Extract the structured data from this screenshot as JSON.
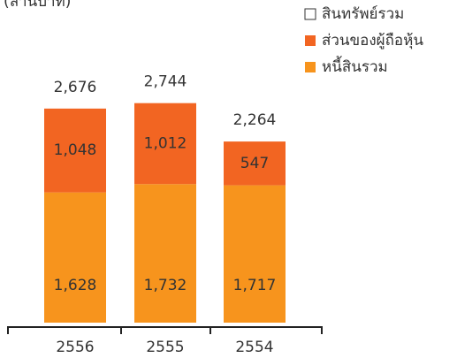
{
  "chart_data": {
    "type": "bar",
    "stacked": true,
    "y_label": "(ล้านบาท)",
    "categories": [
      "2556",
      "2555",
      "2554"
    ],
    "series": [
      {
        "name": "สินทรัพย์รวม",
        "color": "#ffffff",
        "values": [
          2676,
          2744,
          2264
        ],
        "value_labels": [
          "2,676",
          "2,744",
          "2,264"
        ]
      },
      {
        "name": "ส่วนของผู้ถือหุ้น",
        "color": "#f26522",
        "values": [
          1048,
          1012,
          547
        ],
        "value_labels": [
          "1,048",
          "1,012",
          "547"
        ]
      },
      {
        "name": "หนี้สินรวม",
        "color": "#f7941d",
        "values": [
          1628,
          1732,
          1717
        ],
        "value_labels": [
          "1,628",
          "1,732",
          "1,717"
        ]
      }
    ]
  }
}
